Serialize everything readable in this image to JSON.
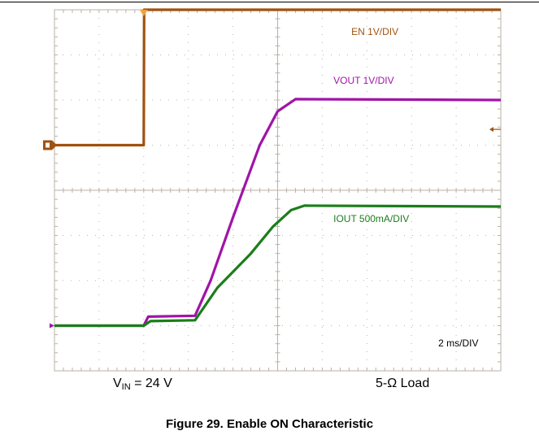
{
  "figure": {
    "title": "Figure 29. Enable ON Characteristic",
    "caption_left": {
      "prefix": "V",
      "subscript": "IN",
      "suffix": " = 24 V"
    },
    "caption_right": "5-Ω Load"
  },
  "colors": {
    "grid": "#b9b2a8",
    "en": "#a0520e",
    "vout": "#a014a8",
    "iout": "#1b7d1b",
    "marker_top": "#f2a23b",
    "marker_right": "#a0520e"
  },
  "chart_data": {
    "type": "line",
    "title": "",
    "timebase_label": "2 ms/DIV",
    "x_unit": "ms",
    "xlim": [
      0,
      20
    ],
    "divisions": {
      "x": 10,
      "y": 8
    },
    "trigger_time_ms": 4.0,
    "series": [
      {
        "name": "EN 1V/DIV",
        "color_key": "en",
        "offset_div": 5.0,
        "scale": 1.0,
        "unit": "V",
        "points": [
          [
            0,
            0.0
          ],
          [
            4.0,
            0.0
          ],
          [
            4.02,
            3.0
          ],
          [
            20,
            3.0
          ]
        ]
      },
      {
        "name": "VOUT 1V/DIV",
        "color_key": "vout",
        "offset_div": 1.0,
        "scale": 1.0,
        "unit": "V",
        "points": [
          [
            0,
            0.0
          ],
          [
            4.0,
            0.0
          ],
          [
            4.2,
            0.2
          ],
          [
            6.3,
            0.22
          ],
          [
            7.0,
            1.0
          ],
          [
            8.0,
            2.4
          ],
          [
            9.2,
            4.0
          ],
          [
            10.0,
            4.75
          ],
          [
            10.8,
            5.02
          ],
          [
            20,
            5.0
          ]
        ]
      },
      {
        "name": "IOUT 500mA/DIV",
        "color_key": "iout",
        "offset_div": 1.0,
        "scale": 0.5,
        "unit": "A",
        "points": [
          [
            0,
            0.0
          ],
          [
            4.0,
            0.0
          ],
          [
            4.3,
            0.05
          ],
          [
            6.3,
            0.06
          ],
          [
            7.3,
            0.42
          ],
          [
            8.8,
            0.8
          ],
          [
            9.8,
            1.1
          ],
          [
            10.6,
            1.28
          ],
          [
            11.2,
            1.33
          ],
          [
            20,
            1.32
          ]
        ]
      }
    ]
  }
}
